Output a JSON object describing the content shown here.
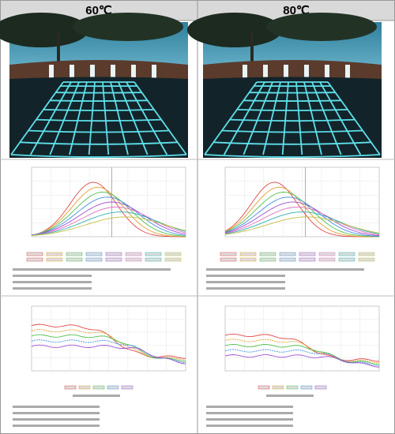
{
  "columns": [
    {
      "header": "60℃"
    },
    {
      "header": "80℃"
    }
  ]
}
